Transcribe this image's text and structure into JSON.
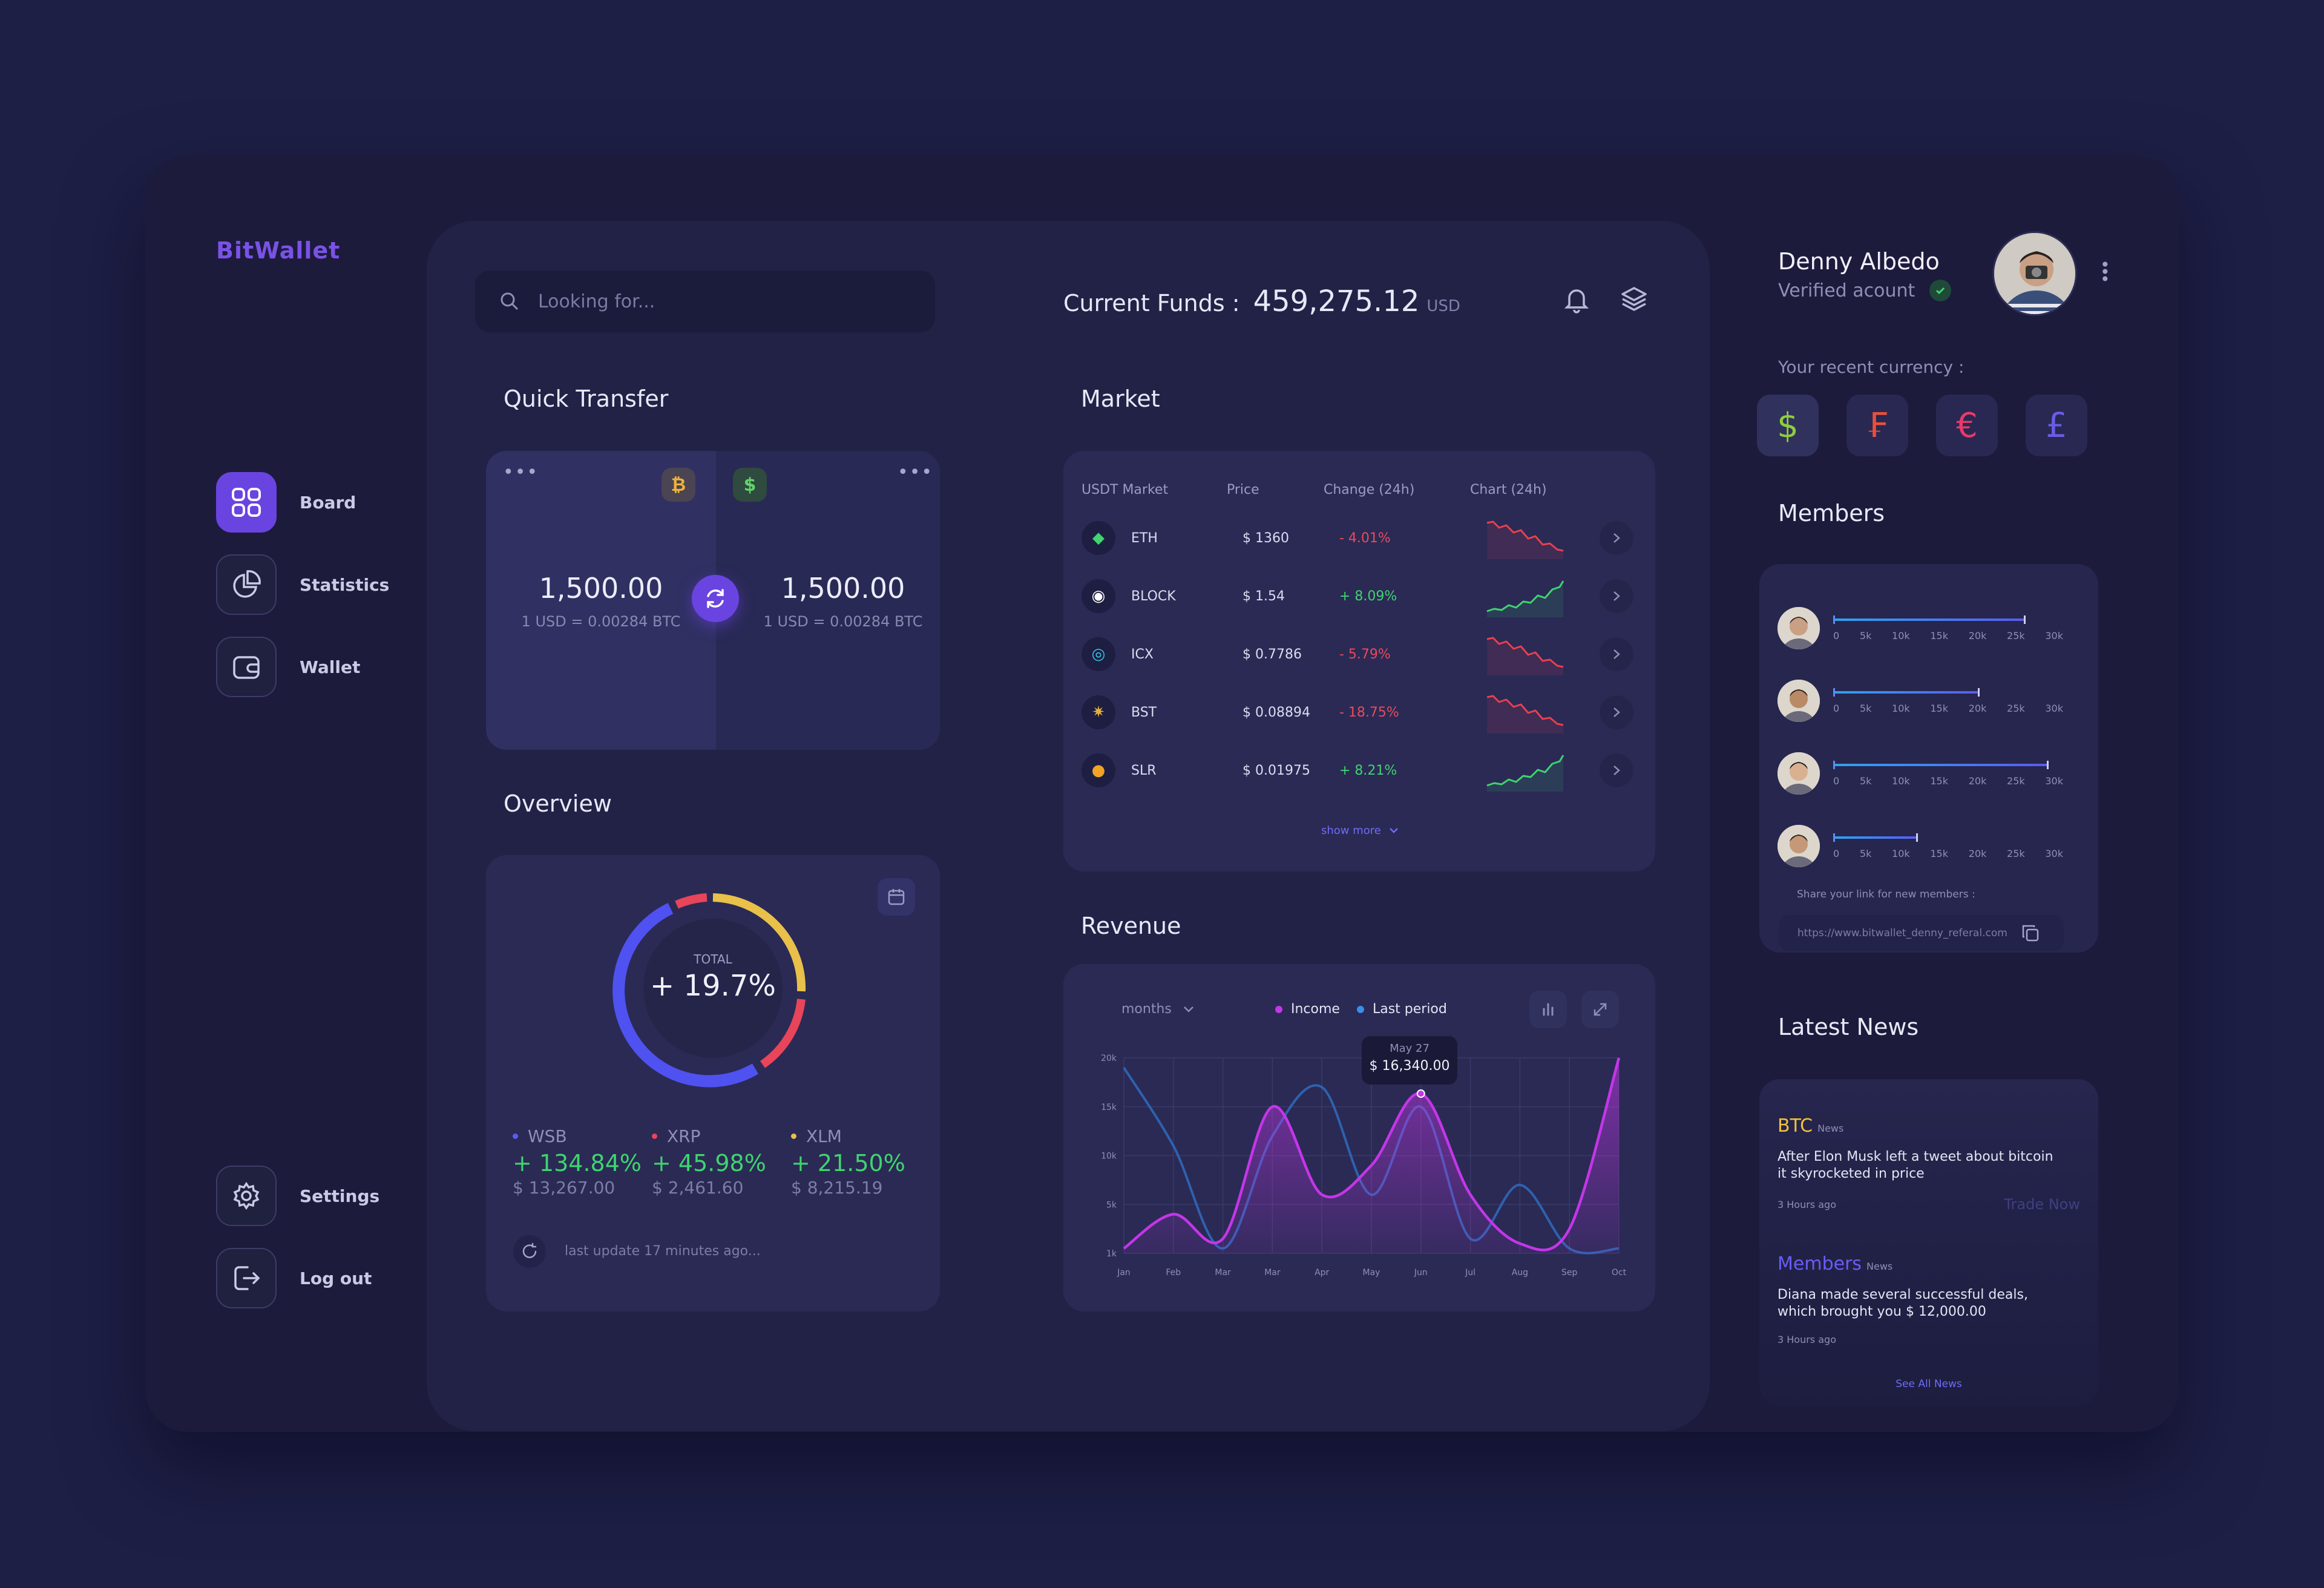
{
  "app": {
    "name": "BitWallet"
  },
  "nav": {
    "board": "Board",
    "statistics": "Statistics",
    "wallet": "Wallet",
    "settings": "Settings",
    "logout": "Log out"
  },
  "search": {
    "placeholder": "Looking for..."
  },
  "funds": {
    "label": "Current Funds :",
    "amount": "459,275.12",
    "currency": "USD"
  },
  "quick_transfer": {
    "title": "Quick Transfer",
    "from": {
      "coin_icon": "bitcoin-icon",
      "amount": "1,500.00",
      "rate": "1 USD = 0.00284 BTC"
    },
    "to": {
      "coin_icon": "dollar-icon",
      "amount": "1,500.00",
      "rate": "1 USD = 0.00284 BTC"
    }
  },
  "market": {
    "title": "Market",
    "headers": [
      "USDT Market",
      "Price",
      "Change (24h)",
      "Chart (24h)"
    ],
    "rows": [
      {
        "coin": "ETH",
        "price": "$ 1360",
        "change": "- 4.01%",
        "trend": "down",
        "color": "#3fd46e"
      },
      {
        "coin": "BLOCK",
        "price": "$ 1.54",
        "change": "+ 8.09%",
        "trend": "up",
        "color": "#ffffff"
      },
      {
        "coin": "ICX",
        "price": "$ 0.7786",
        "change": "- 5.79%",
        "trend": "down",
        "color": "#35c9e8"
      },
      {
        "coin": "BST",
        "price": "$ 0.08894",
        "change": "- 18.75%",
        "trend": "down",
        "color": "#e8b13a"
      },
      {
        "coin": "SLR",
        "price": "$ 0.01975",
        "change": "+ 8.21%",
        "trend": "up",
        "color": "#f0a324"
      }
    ],
    "show_more": "show more"
  },
  "overview": {
    "title": "Overview",
    "total_label": "TOTAL",
    "total_value": "+ 19.7%",
    "items": [
      {
        "name": "WSB",
        "pct": "+ 134.84%",
        "value": "$ 13,267.00",
        "color": "#5a5cf0"
      },
      {
        "name": "XRP",
        "pct": "+ 45.98%",
        "value": "$ 2,461.60",
        "color": "#e8445a"
      },
      {
        "name": "XLM",
        "pct": "+ 21.50%",
        "value": "$ 8,215.19",
        "color": "#e8c04a"
      }
    ],
    "last_update": "last update 17 minutes ago..."
  },
  "revenue": {
    "title": "Revenue",
    "period": "months",
    "legend": [
      {
        "name": "Income",
        "color": "#c436e8"
      },
      {
        "name": "Last period",
        "color": "#3a8ee8"
      }
    ],
    "tooltip": {
      "date": "May 27",
      "value": "$ 16,340.00"
    }
  },
  "chart_data": {
    "type": "area",
    "categories": [
      "Jan",
      "Feb",
      "Mar",
      "Mar",
      "Apr",
      "May",
      "Jun",
      "Jul",
      "Aug",
      "Sep",
      "Oct"
    ],
    "y_ticks": [
      "20k",
      "15k",
      "10k",
      "5k",
      "1k"
    ],
    "ylim": [
      0,
      20000
    ],
    "series": [
      {
        "name": "Income",
        "values": [
          500,
          4000,
          1500,
          15000,
          6000,
          9000,
          16340,
          6000,
          1000,
          2500,
          20000
        ]
      },
      {
        "name": "Last period",
        "values": [
          19000,
          11000,
          500,
          12000,
          17000,
          6000,
          15000,
          1500,
          7000,
          500,
          500
        ]
      }
    ]
  },
  "profile": {
    "name": "Denny Albedo",
    "status": "Verified acount",
    "recent_currency_label": "Your recent currency :",
    "currencies": [
      {
        "symbol": "$",
        "color": "#8ecf3a"
      },
      {
        "symbol": "₣",
        "color": "#e8503a"
      },
      {
        "symbol": "€",
        "color": "#e83a6a"
      },
      {
        "symbol": "£",
        "color": "#6a5ce8"
      }
    ]
  },
  "members": {
    "title": "Members",
    "ticks": [
      "0",
      "5k",
      "10k",
      "15k",
      "20k",
      "25k",
      "30k"
    ],
    "levels": [
      25000,
      19000,
      28000,
      11000
    ],
    "share_label": "Share your link for new members :",
    "link": "https://www.bitwallet_denny_referal.com"
  },
  "news": {
    "title": "Latest News",
    "items": [
      {
        "tag": "BTC",
        "tag_suffix": "News",
        "tag_color": "#f2c23a",
        "text": "After Elon Musk left a tweet about bitcoin it skyrocketed in price",
        "time": "3 Hours ago",
        "action": "Trade Now"
      },
      {
        "tag": "Members",
        "tag_suffix": "News",
        "tag_color": "#6a5cf5",
        "text": "Diana made several successful deals, which brought you $ 12,000.00",
        "time": "3 Hours ago"
      }
    ],
    "see_all": "See All News"
  }
}
